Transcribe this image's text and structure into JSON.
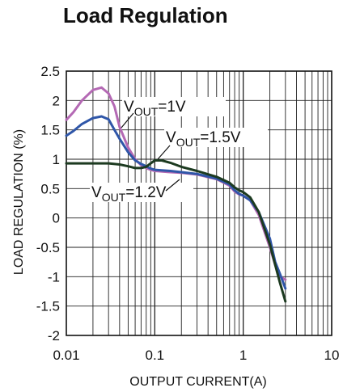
{
  "chart_data": {
    "type": "line",
    "title": "Load Regulation",
    "xlabel": "OUTPUT CURRENT(A)",
    "ylabel": "LOAD REGULATION (%)",
    "xscale": "log",
    "xlim": [
      0.01,
      10
    ],
    "ylim": [
      -2,
      2.5
    ],
    "grid": true,
    "x_tick_labels": [
      "0.01",
      "0.1",
      "1",
      "10"
    ],
    "y_tick_labels": [
      "2.5",
      "2",
      "1.5",
      "1",
      "0.5",
      "0",
      "-0.5",
      "-1",
      "-1.5",
      "-2"
    ],
    "annotations": [
      {
        "text_main": "V",
        "text_sub": "OUT",
        "text_tail": "=1V"
      },
      {
        "text_main": "V",
        "text_sub": "OUT",
        "text_tail": "=1.5V"
      },
      {
        "text_main": "V",
        "text_sub": "OUT",
        "text_tail": "=1.2V"
      }
    ],
    "series": [
      {
        "name": "VOUT=1V",
        "color": "#b469b4",
        "x": [
          0.01,
          0.012,
          0.015,
          0.02,
          0.025,
          0.03,
          0.035,
          0.04,
          0.05,
          0.06,
          0.07,
          0.08,
          0.09,
          0.1,
          0.15,
          0.2,
          0.3,
          0.5,
          0.7,
          0.8,
          0.9,
          1.0,
          1.2,
          1.5,
          2.0,
          2.3,
          2.6,
          3.0
        ],
        "y": [
          1.67,
          1.8,
          2.0,
          2.18,
          2.22,
          2.12,
          1.9,
          1.55,
          1.2,
          1.0,
          0.9,
          0.85,
          0.82,
          0.8,
          0.78,
          0.77,
          0.74,
          0.66,
          0.55,
          0.45,
          0.4,
          0.38,
          0.3,
          0.05,
          -0.5,
          -0.8,
          -1.0,
          -1.05
        ]
      },
      {
        "name": "VOUT=1.5V",
        "color": "#2f56a8",
        "x": [
          0.01,
          0.012,
          0.015,
          0.02,
          0.025,
          0.03,
          0.035,
          0.04,
          0.05,
          0.06,
          0.07,
          0.08,
          0.09,
          0.1,
          0.15,
          0.2,
          0.3,
          0.5,
          0.7,
          0.8,
          0.9,
          1.0,
          1.2,
          1.5,
          2.0,
          2.3,
          2.6,
          3.0
        ],
        "y": [
          1.4,
          1.48,
          1.6,
          1.7,
          1.73,
          1.68,
          1.5,
          1.35,
          1.12,
          0.98,
          0.92,
          0.88,
          0.84,
          0.82,
          0.8,
          0.78,
          0.75,
          0.67,
          0.57,
          0.47,
          0.41,
          0.38,
          0.3,
          0.1,
          -0.35,
          -0.75,
          -0.95,
          -1.2
        ]
      },
      {
        "name": "VOUT=1.2V",
        "color": "#1c3a20",
        "x": [
          0.01,
          0.015,
          0.02,
          0.03,
          0.04,
          0.05,
          0.06,
          0.07,
          0.08,
          0.09,
          0.1,
          0.12,
          0.15,
          0.2,
          0.3,
          0.5,
          0.7,
          0.8,
          0.9,
          1.0,
          1.2,
          1.5,
          2.0,
          2.3,
          2.6,
          3.0
        ],
        "y": [
          0.93,
          0.93,
          0.93,
          0.93,
          0.91,
          0.88,
          0.85,
          0.85,
          0.87,
          0.93,
          0.98,
          0.98,
          0.94,
          0.87,
          0.8,
          0.7,
          0.6,
          0.52,
          0.47,
          0.44,
          0.35,
          0.1,
          -0.45,
          -0.8,
          -1.1,
          -1.42
        ]
      }
    ]
  }
}
